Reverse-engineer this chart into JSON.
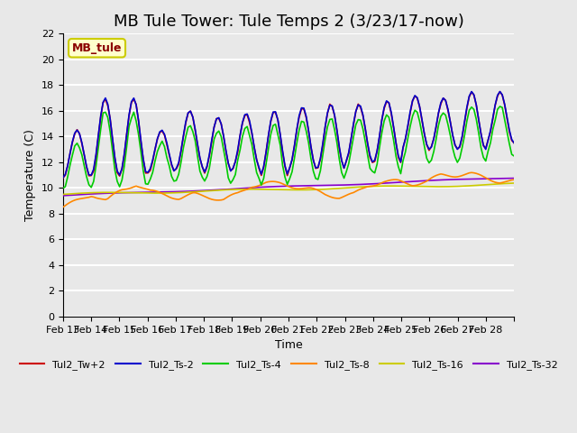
{
  "title": "MB Tule Tower: Tule Temps 2 (3/23/17-now)",
  "xlabel": "Time",
  "ylabel": "Temperature (C)",
  "ylim": [
    0,
    22
  ],
  "yticks": [
    0,
    2,
    4,
    6,
    8,
    10,
    12,
    14,
    16,
    18,
    20,
    22
  ],
  "plot_bg_color": "#e8e8e8",
  "grid_color": "#ffffff",
  "annotation_label": "MB_tule",
  "annotation_color": "#8b0000",
  "annotation_bg": "#ffffcc",
  "annotation_border": "#cccc00",
  "series": {
    "Tul2_Tw+2": {
      "color": "#cc0000"
    },
    "Tul2_Ts-2": {
      "color": "#0000cc"
    },
    "Tul2_Ts-4": {
      "color": "#00cc00"
    },
    "Tul2_Ts-8": {
      "color": "#ff8800"
    },
    "Tul2_Ts-16": {
      "color": "#cccc00"
    },
    "Tul2_Ts-32": {
      "color": "#8800cc"
    }
  },
  "xtick_labels": [
    "Feb 13",
    "Feb 14",
    "Feb 15",
    "Feb 16",
    "Feb 17",
    "Feb 18",
    "Feb 19",
    "Feb 20",
    "Feb 21",
    "Feb 22",
    "Feb 23",
    "Feb 24",
    "Feb 25",
    "Feb 26",
    "Feb 27",
    "Feb 28",
    ""
  ],
  "n_days": 16,
  "title_fontsize": 13,
  "axis_label_fontsize": 9,
  "tick_fontsize": 8,
  "legend_fontsize": 8,
  "lw": 1.2
}
